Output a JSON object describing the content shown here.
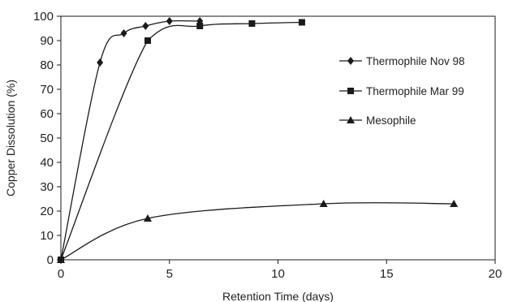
{
  "chart_data": {
    "type": "line",
    "title": "",
    "xlabel": "Retention Time (days)",
    "ylabel": "Copper Dissolution (%)",
    "xlim": [
      0,
      20
    ],
    "ylim": [
      0,
      100
    ],
    "x_ticks": [
      0,
      5,
      10,
      15,
      20
    ],
    "y_ticks": [
      0,
      10,
      20,
      30,
      40,
      50,
      60,
      70,
      80,
      90,
      100
    ],
    "grid": false,
    "legend_position": "right",
    "smooth": true,
    "series": [
      {
        "name": "Thermophile Nov 98",
        "marker": "diamond",
        "points": [
          [
            0,
            0
          ],
          [
            1.8,
            81
          ],
          [
            2.9,
            93
          ],
          [
            3.9,
            96
          ],
          [
            5,
            98
          ],
          [
            6.4,
            98
          ]
        ]
      },
      {
        "name": "Thermophile Mar 99",
        "marker": "square",
        "points": [
          [
            0,
            0
          ],
          [
            4,
            90
          ],
          [
            6.4,
            96
          ],
          [
            8.8,
            97
          ],
          [
            11.1,
            97.5
          ]
        ]
      },
      {
        "name": "Mesophile",
        "marker": "triangle",
        "points": [
          [
            0,
            0
          ],
          [
            4,
            17
          ],
          [
            12.1,
            23
          ],
          [
            18.1,
            23
          ]
        ]
      }
    ],
    "colors": {
      "line": "#1a1a1a",
      "axis": "#1a1a1a",
      "background": "#ffffff"
    }
  }
}
